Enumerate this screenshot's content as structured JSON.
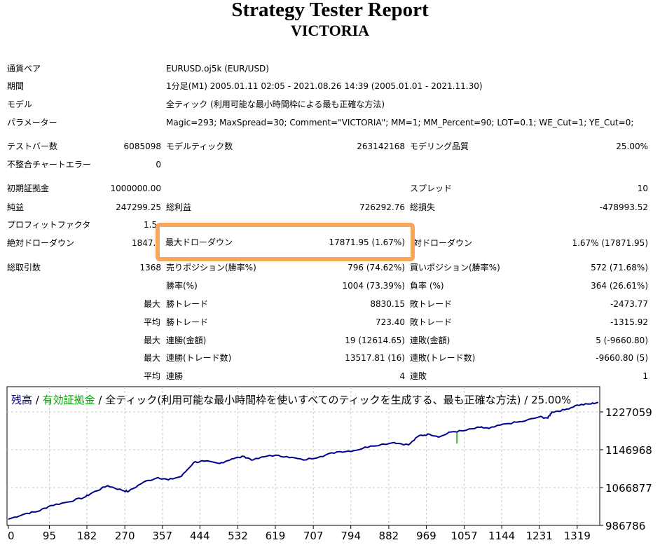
{
  "title": "Strategy Tester Report",
  "subtitle": "VICTORIA",
  "info": [
    {
      "label": "通貨ペア",
      "value": "EURUSD.oj5k (EUR/USD)"
    },
    {
      "label": "期間",
      "value": "1分足(M1) 2005.01.11 02:05 - 2021.08.26 14:39 (2005.01.01 - 2021.11.30)"
    },
    {
      "label": "モデル",
      "value": "全ティック (利用可能な最小時間枠による最も正確な方法)"
    },
    {
      "label": "パラメーター",
      "value": "Magic=293; MaxSpread=30; Comment=\"VICTORIA\"; MM=1; MM_Percent=90; LOT=0.1; WE_Cut=1; YE_Cut=0;"
    }
  ],
  "stats": {
    "bars_label": "テストバー数",
    "bars": "6085098",
    "ticks_label": "モデルティック数",
    "ticks": "263142168",
    "quality_label": "モデリング品質",
    "quality": "25.00%",
    "errors_label": "不整合チャートエラー",
    "errors": "0",
    "deposit_label": "初期証拠金",
    "deposit": "1000000.00",
    "spread_label": "スプレッド",
    "spread": "10",
    "net_label": "純益",
    "net": "247299.25",
    "gross_profit_label": "総利益",
    "gross_profit": "726292.76",
    "gross_loss_label": "総損失",
    "gross_loss": "-478993.52",
    "pf_label": "プロフィットファクタ",
    "pf": "1.5",
    "abs_dd_label": "絶対ドローダウン",
    "abs_dd": "1847.",
    "max_dd_label": "最大ドローダウン",
    "max_dd": "17871.95 (1.67%)",
    "rel_dd_label": "相対ドローダウン",
    "rel_dd": "1.67% (17871.95)",
    "total_label": "総取引数",
    "total": "1368",
    "short_label": "売りポジション(勝率%)",
    "short": "796 (74.62%)",
    "long_label": "買いポジション(勝率%)",
    "long": "572 (71.68%)",
    "win_label": "勝率(%)",
    "win": "1004 (73.39%)",
    "loss_label": "負率 (%)",
    "loss": "364 (26.61%)",
    "max": "最大",
    "avg": "平均",
    "max_win_label": "勝トレード",
    "max_win": "8830.15",
    "max_loss_label": "敗トレード",
    "max_loss": "-2473.77",
    "avg_win_label": "勝トレード",
    "avg_win": "723.40",
    "avg_loss_label": "敗トレード",
    "avg_loss": "-1315.92",
    "cw_amt_label": "連勝(金額)",
    "cw_amt": "19 (12614.65)",
    "cl_amt_label": "連敗(金額)",
    "cl_amt": "5 (-9660.80)",
    "cw_cnt_label": "連勝(トレード数)",
    "cw_cnt": "13517.81 (16)",
    "cl_cnt_label": "連敗(トレード数)",
    "cl_cnt": "-9660.80 (5)",
    "avg_cw_label": "連勝",
    "avg_cw": "4",
    "avg_cl_label": "連敗",
    "avg_cl": "1"
  },
  "chart_data": {
    "type": "line",
    "legend": {
      "balance": "残高",
      "sep1": " / ",
      "equity": "有効証拠金",
      "rest": " / 全ティック(利用可能な最小時間枠を使いすべてのティックを生成する、最も正確な方法) / 25.00%"
    },
    "colors": {
      "balance": "#00008B",
      "equity": "#00A000",
      "grid": "#C8C8C8"
    },
    "x_ticks": [
      0,
      95,
      182,
      270,
      357,
      444,
      532,
      619,
      707,
      794,
      882,
      969,
      1057,
      1144,
      1231,
      1319
    ],
    "y_ticks": [
      986786,
      1066877,
      1146968,
      1227059
    ],
    "xlim": [
      0,
      1368
    ],
    "ylim": [
      986786,
      1254000
    ],
    "balance": [
      [
        0,
        1000000
      ],
      [
        39,
        1011500
      ],
      [
        68,
        1016400
      ],
      [
        98,
        1028800
      ],
      [
        137,
        1036200
      ],
      [
        176,
        1046100
      ],
      [
        195,
        1056000
      ],
      [
        230,
        1070900
      ],
      [
        264,
        1061000
      ],
      [
        278,
        1058400
      ],
      [
        313,
        1078300
      ],
      [
        347,
        1088100
      ],
      [
        371,
        1083200
      ],
      [
        401,
        1090600
      ],
      [
        430,
        1120300
      ],
      [
        454,
        1122800
      ],
      [
        489,
        1117800
      ],
      [
        518,
        1127700
      ],
      [
        547,
        1132600
      ],
      [
        567,
        1125200
      ],
      [
        606,
        1135100
      ],
      [
        645,
        1132600
      ],
      [
        684,
        1125200
      ],
      [
        723,
        1132600
      ],
      [
        762,
        1142500
      ],
      [
        801,
        1145000
      ],
      [
        840,
        1154800
      ],
      [
        894,
        1162200
      ],
      [
        928,
        1157300
      ],
      [
        953,
        1177100
      ],
      [
        977,
        1179600
      ],
      [
        1001,
        1174600
      ],
      [
        1026,
        1184500
      ],
      [
        1055,
        1187000
      ],
      [
        1094,
        1194400
      ],
      [
        1114,
        1191900
      ],
      [
        1153,
        1201800
      ],
      [
        1192,
        1206700
      ],
      [
        1231,
        1216600
      ],
      [
        1251,
        1214100
      ],
      [
        1260,
        1226600
      ],
      [
        1290,
        1231500
      ],
      [
        1319,
        1241400
      ],
      [
        1348,
        1243800
      ],
      [
        1368,
        1247300
      ]
    ],
    "equity_dip": [
      [
        1040,
        1183000
      ],
      [
        1040,
        1160000
      ]
    ]
  }
}
